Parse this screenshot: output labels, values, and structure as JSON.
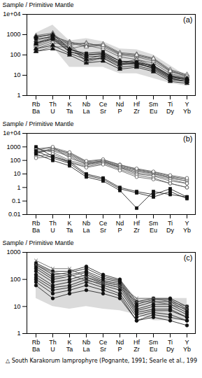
{
  "chart_data": [
    {
      "type": "line",
      "title": "(a)",
      "ylabel": "Sample / Primitive Mantle",
      "categories": [
        "Rb",
        "Th",
        "K",
        "Nb",
        "Ce",
        "Nd",
        "Hf",
        "Sm",
        "Ti",
        "Y"
      ],
      "secondary_categories": [
        "Ba",
        "U",
        "Ta",
        "La",
        "Sr",
        "P",
        "Zr",
        "Eu",
        "Dy",
        "Yb"
      ],
      "log": "y",
      "grid": false,
      "ylim": [
        1,
        10000
      ],
      "yticks": [
        1,
        10,
        100,
        1000,
        {
          "value": 10000,
          "label": "1e+04"
        }
      ],
      "series": [
        {
          "type": "area",
          "color": "#b0b0b0",
          "lower": [
            150,
            250,
            25,
            25,
            25,
            12,
            12,
            7,
            4,
            3
          ],
          "upper": [
            1200,
            3000,
            500,
            650,
            450,
            200,
            180,
            100,
            30,
            9
          ]
        },
        {
          "color": "#555555",
          "marker": "triangle-open",
          "values": [
            900,
            1200,
            200,
            300,
            200,
            80,
            60,
            40,
            12,
            8
          ]
        },
        {
          "color": "#555555",
          "marker": "triangle-open",
          "values": [
            700,
            1100,
            300,
            400,
            250,
            100,
            80,
            50,
            15,
            9
          ]
        },
        {
          "color": "#555555",
          "marker": "triangle-open",
          "values": [
            500,
            900,
            400,
            350,
            300,
            120,
            90,
            60,
            17,
            10
          ]
        },
        {
          "color": "#555555",
          "marker": "triangle-open",
          "values": [
            400,
            800,
            450,
            280,
            350,
            130,
            110,
            70,
            19,
            11
          ]
        },
        {
          "color": "#555555",
          "marker": "triangle-open",
          "values": [
            300,
            600,
            400,
            250,
            300,
            110,
            100,
            65,
            16,
            9
          ]
        },
        {
          "color": "#555555",
          "marker": "triangle-open",
          "values": [
            250,
            500,
            350,
            60,
            100,
            40,
            60,
            30,
            9,
            7
          ]
        },
        {
          "color": "#555555",
          "marker": "triangle-open",
          "values": [
            200,
            400,
            300,
            50,
            80,
            35,
            55,
            25,
            8,
            6
          ]
        },
        {
          "color": "#555555",
          "marker": "triangle-open",
          "values": [
            150,
            250,
            250,
            45,
            70,
            30,
            45,
            20,
            7,
            5
          ]
        },
        {
          "color": "#111111",
          "marker": "triangle",
          "values": [
            800,
            1000,
            200,
            100,
            120,
            50,
            40,
            30,
            10,
            7
          ]
        },
        {
          "color": "#111111",
          "marker": "triangle",
          "values": [
            350,
            700,
            150,
            80,
            90,
            35,
            35,
            25,
            8,
            6
          ]
        },
        {
          "color": "#111111",
          "marker": "triangle",
          "values": [
            200,
            300,
            120,
            60,
            70,
            25,
            30,
            18,
            6,
            5
          ]
        },
        {
          "color": "#111111",
          "marker": "triangle",
          "values": [
            150,
            200,
            100,
            40,
            50,
            20,
            25,
            15,
            5,
            4
          ]
        },
        {
          "color": "#111111",
          "marker": "square",
          "values": [
            600,
            800,
            180,
            120,
            140,
            50,
            45,
            28,
            9,
            6
          ]
        },
        {
          "color": "#111111",
          "marker": "square",
          "values": [
            400,
            600,
            140,
            100,
            110,
            40,
            38,
            22,
            7,
            5
          ]
        }
      ]
    },
    {
      "type": "line",
      "title": "(b)",
      "ylabel": "Sample / Primitive Mantle",
      "categories": [
        "Rb",
        "Th",
        "K",
        "Nb",
        "Ce",
        "Nd",
        "Hf",
        "Sm",
        "Ti",
        "Y"
      ],
      "secondary_categories": [
        "Ba",
        "U",
        "Ta",
        "La",
        "Sr",
        "P",
        "Zr",
        "Eu",
        "Dy",
        "Yb"
      ],
      "log": "y",
      "grid": false,
      "ylim": [
        0.01,
        10000
      ],
      "yticks": [
        0.01,
        0.1,
        1,
        10,
        100,
        1000,
        {
          "value": 10000,
          "label": "1e+04"
        }
      ],
      "series": [
        {
          "color": "#555555",
          "marker": "circle-open",
          "values": [
            500,
            500,
            200,
            50,
            80,
            30,
            15,
            10,
            5,
            3
          ]
        },
        {
          "color": "#555555",
          "marker": "circle-open",
          "values": [
            400,
            600,
            250,
            60,
            100,
            40,
            20,
            12,
            6,
            4
          ]
        },
        {
          "color": "#555555",
          "marker": "circle-open",
          "values": [
            350,
            800,
            300,
            70,
            90,
            35,
            18,
            11,
            5,
            3
          ]
        },
        {
          "color": "#555555",
          "marker": "circle-open",
          "values": [
            300,
            700,
            350,
            80,
            110,
            50,
            22,
            14,
            7,
            4
          ]
        },
        {
          "color": "#555555",
          "marker": "circle-open",
          "values": [
            600,
            900,
            400,
            90,
            120,
            45,
            25,
            15,
            8,
            5
          ]
        },
        {
          "color": "#555555",
          "marker": "circle-open",
          "values": [
            700,
            1000,
            150,
            55,
            85,
            32,
            12,
            8,
            4,
            2
          ]
        },
        {
          "color": "#555555",
          "marker": "circle-open",
          "values": [
            800,
            400,
            100,
            45,
            70,
            28,
            10,
            7,
            3,
            2
          ]
        },
        {
          "color": "#555555",
          "marker": "circle-open",
          "values": [
            200,
            300,
            80,
            35,
            60,
            22,
            8,
            5,
            2,
            1
          ]
        },
        {
          "color": "#555555",
          "marker": "circle-open",
          "values": [
            150,
            200,
            70,
            30,
            50,
            18,
            6,
            4,
            2,
            1
          ]
        },
        {
          "color": "#111111",
          "marker": "square",
          "values": [
            1000,
            200,
            80,
            10,
            5,
            1.0,
            0.5,
            0.3,
            0.8,
            0.2
          ]
        },
        {
          "color": "#111111",
          "marker": "square",
          "values": [
            500,
            150,
            60,
            8,
            4,
            0.8,
            0.4,
            0.2,
            0.5,
            0.15
          ]
        },
        {
          "color": "#111111",
          "marker": "square",
          "values": [
            300,
            100,
            40,
            6,
            3,
            0.6,
            0.03,
            0.5,
            0.3,
            0.2
          ]
        }
      ]
    },
    {
      "type": "line",
      "title": "(c)",
      "ylabel": "Sample / Primitive Mantle",
      "categories": [
        "Rb",
        "Th",
        "K",
        "Nb",
        "Ce",
        "Nd",
        "Hf",
        "Sm",
        "Ti",
        "Y"
      ],
      "secondary_categories": [
        "Ba",
        "U",
        "Ta",
        "La",
        "Sr",
        "P",
        "Zr",
        "Eu",
        "Dy",
        "Yb"
      ],
      "log": "y",
      "grid": false,
      "ylim": [
        1,
        1000
      ],
      "yticks": [
        1,
        10,
        100,
        1000
      ],
      "annotations": [
        "△ South Karakorum lamprophyre (Pognante, 1991; Searle et al., 199"
      ],
      "series": [
        {
          "type": "area",
          "color": "#b0b0b0",
          "lower": [
            20,
            10,
            8,
            10,
            8,
            7,
            5,
            3,
            3,
            3
          ],
          "upper": [
            400,
            200,
            100,
            150,
            110,
            100,
            20,
            20,
            20,
            20
          ]
        },
        {
          "color": "#111111",
          "marker": "circle",
          "values": [
            400,
            200,
            200,
            300,
            150,
            100,
            15,
            20,
            20,
            10
          ]
        },
        {
          "color": "#111111",
          "marker": "circle",
          "values": [
            350,
            150,
            180,
            250,
            130,
            90,
            12,
            18,
            18,
            8
          ]
        },
        {
          "color": "#111111",
          "marker": "circle",
          "values": [
            300,
            120,
            150,
            200,
            110,
            80,
            10,
            15,
            15,
            7
          ]
        },
        {
          "color": "#111111",
          "marker": "circle",
          "values": [
            250,
            100,
            130,
            180,
            90,
            70,
            8,
            12,
            12,
            6
          ]
        },
        {
          "color": "#111111",
          "marker": "circle",
          "values": [
            200,
            80,
            100,
            150,
            80,
            60,
            7,
            10,
            10,
            5
          ]
        },
        {
          "color": "#111111",
          "marker": "circle",
          "values": [
            150,
            60,
            80,
            120,
            70,
            50,
            6,
            8,
            8,
            4
          ]
        },
        {
          "color": "#111111",
          "marker": "circle",
          "values": [
            120,
            50,
            60,
            100,
            60,
            40,
            5,
            7,
            7,
            4
          ]
        },
        {
          "color": "#111111",
          "marker": "circle",
          "values": [
            100,
            40,
            50,
            80,
            50,
            30,
            4,
            6,
            5,
            3
          ]
        },
        {
          "color": "#111111",
          "marker": "circle",
          "values": [
            80,
            30,
            40,
            60,
            40,
            25,
            3,
            5,
            4,
            3
          ]
        },
        {
          "color": "#111111",
          "marker": "circle",
          "values": [
            60,
            20,
            30,
            40,
            30,
            20,
            3,
            4,
            3,
            2
          ]
        },
        {
          "color": "#555555",
          "marker": "times",
          "values": [
            500,
            250,
            250,
            120,
            80,
            60,
            20,
            20,
            15,
            10
          ]
        },
        {
          "color": "#555555",
          "marker": "times",
          "values": [
            350,
            180,
            150,
            90,
            70,
            50,
            15,
            15,
            12,
            8
          ]
        }
      ]
    }
  ]
}
